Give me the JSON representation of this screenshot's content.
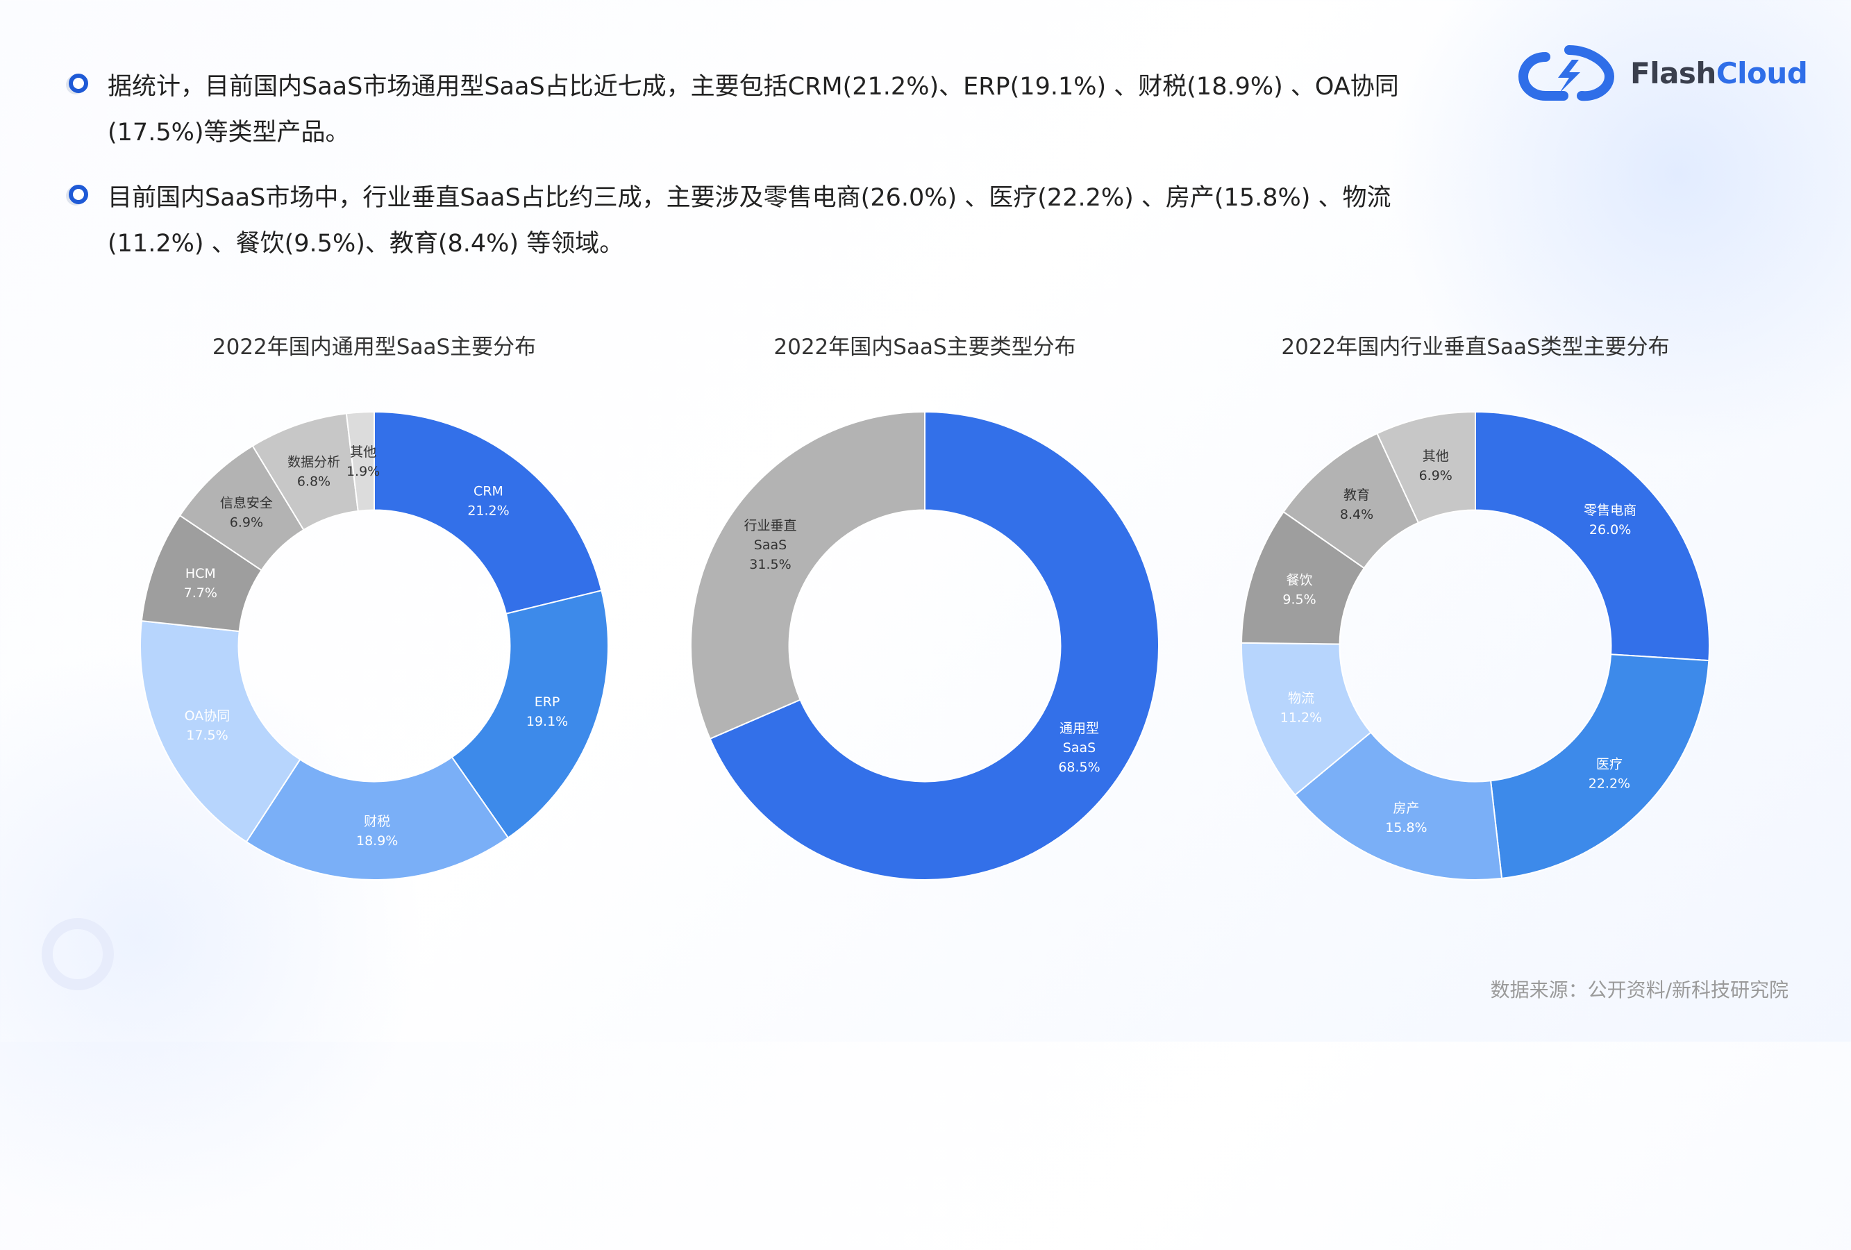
{
  "logo": {
    "text_flash": "Flash",
    "text_cloud": "Cloud"
  },
  "bullets": [
    {
      "line1": "据统计，目前国内SaaS市场通用型SaaS占比近七成，主要包括CRM(21.2%)、ERP(19.1%) 、财税(18.9%) 、OA协同",
      "line2": "(17.5%)等类型产品。"
    },
    {
      "line1": "目前国内SaaS市场中，行业垂直SaaS占比约三成，主要涉及零售电商(26.0%) 、医疗(22.2%) 、房产(15.8%) 、物流",
      "line2": "(11.2%) 、餐饮(9.5%)、教育(8.4%) 等领域。"
    }
  ],
  "source": "数据来源：公开资料/新科技研究院",
  "chart_data": [
    {
      "type": "pie",
      "title": "2022年国内通用型SaaS主要分布",
      "categories": [
        "CRM",
        "ERP",
        "财税",
        "OA协同",
        "HCM",
        "信息安全",
        "数据分析",
        "其他"
      ],
      "values": [
        21.2,
        19.1,
        18.9,
        17.5,
        7.7,
        6.9,
        6.8,
        1.9
      ],
      "value_labels": [
        "21.2%",
        "19.1%",
        "18.9%",
        "17.5%",
        "7.7%",
        "6.9%",
        "6.8%",
        "1.9%"
      ],
      "colors": [
        "#3370e9",
        "#3d8aea",
        "#7aaff7",
        "#b7d5fd",
        "#9e9e9e",
        "#b3b3b3",
        "#c7c7c7",
        "#dcdcdc"
      ],
      "hole": 0.58
    },
    {
      "type": "pie",
      "title": "2022年国内SaaS主要类型分布",
      "categories": [
        "通用型\nSaaS",
        "行业垂直\nSaaS"
      ],
      "values": [
        68.5,
        31.5
      ],
      "value_labels": [
        "68.5%",
        "31.5%"
      ],
      "colors": [
        "#3370e9",
        "#b3b3b3"
      ],
      "hole": 0.58
    },
    {
      "type": "pie",
      "title": "2022年国内行业垂直SaaS类型主要分布",
      "categories": [
        "零售电商",
        "医疗",
        "房产",
        "物流",
        "餐饮",
        "教育",
        "其他"
      ],
      "values": [
        26.0,
        22.2,
        15.8,
        11.2,
        9.5,
        8.4,
        6.9
      ],
      "value_labels": [
        "26.0%",
        "22.2%",
        "15.8%",
        "11.2%",
        "9.5%",
        "8.4%",
        "6.9%"
      ],
      "colors": [
        "#3370e9",
        "#3d8aea",
        "#7aaff7",
        "#b7d5fd",
        "#9e9e9e",
        "#b3b3b3",
        "#c7c7c7"
      ],
      "hole": 0.58
    }
  ]
}
